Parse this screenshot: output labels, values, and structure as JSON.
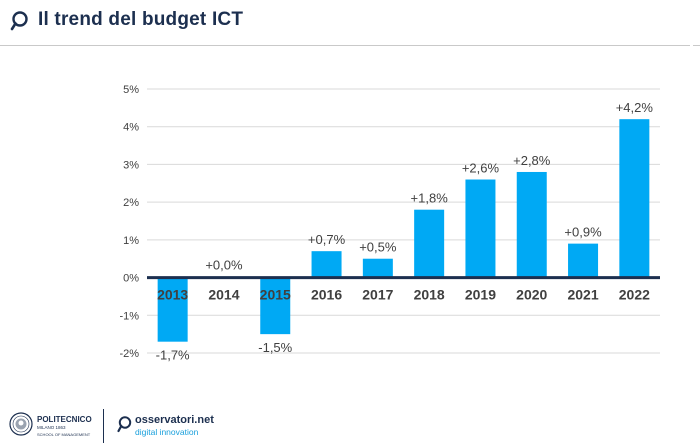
{
  "header": {
    "title": "Il trend del budget ICT"
  },
  "chart_data": {
    "type": "bar",
    "categories": [
      "2013",
      "2014",
      "2015",
      "2016",
      "2017",
      "2018",
      "2019",
      "2020",
      "2021",
      "2022"
    ],
    "values": [
      -1.7,
      0.0,
      -1.5,
      0.7,
      0.5,
      1.8,
      2.6,
      2.8,
      0.9,
      4.2
    ],
    "data_labels": [
      "-1,7%",
      "+0,0%",
      "-1,5%",
      "+0,7%",
      "+0,5%",
      "+1,8%",
      "+2,6%",
      "+2,8%",
      "+0,9%",
      "+4,2%"
    ],
    "y_ticks": [
      5,
      4,
      3,
      2,
      1,
      0,
      -1,
      -2
    ],
    "y_tick_labels": [
      "5%",
      "4%",
      "3%",
      "2%",
      "1%",
      "0%",
      "-1%",
      "-2%"
    ],
    "ylim": [
      -2,
      5
    ],
    "grid": true,
    "legend": "none",
    "colors": {
      "bar": "#00a9f4",
      "grid": "#d9d9d9",
      "zero_line": "#1c2f4f",
      "category_label": "#404040",
      "data_label": "#404040",
      "tick_label": "#404040"
    }
  },
  "footer": {
    "politecnico": {
      "name": "POLITECNICO",
      "city": "MILANO 1863",
      "school": "SCHOOL OF MANAGEMENT"
    },
    "osservatori": {
      "name": "osservatori.net",
      "tagline": "digital innovation"
    }
  },
  "colors": {
    "title": "#1c2f4f",
    "accent": "#1aa0dc"
  }
}
